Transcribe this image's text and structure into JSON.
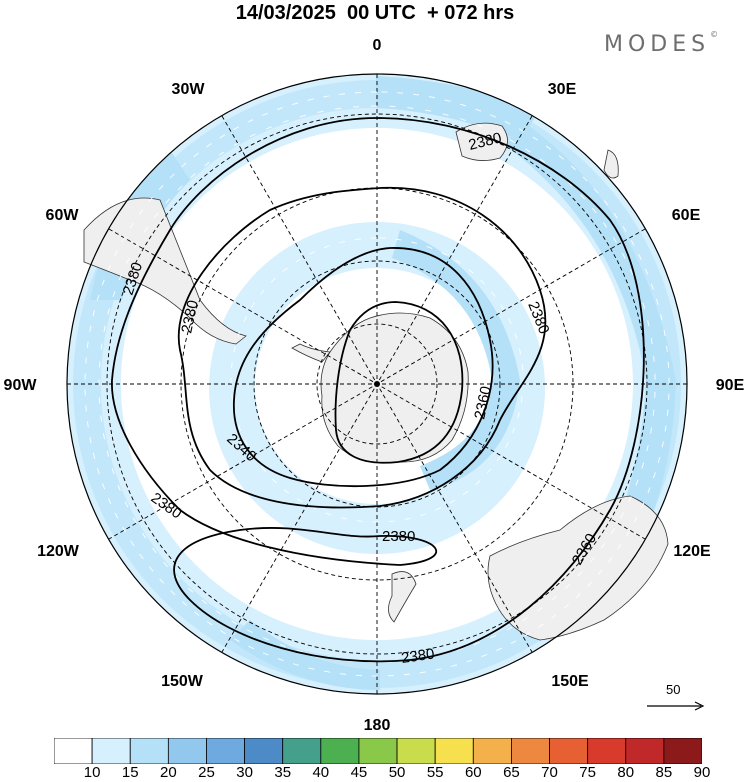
{
  "title": "14/03/2025  00 UTC  + 072 hrs",
  "brand": "MODES",
  "brand_mark": "©",
  "longitude_labels": {
    "lon_0": "0",
    "lon_30e": "30E",
    "lon_60e": "60E",
    "lon_90e": "90E",
    "lon_120e": "120E",
    "lon_150e": "150E",
    "lon_180": "180",
    "lon_150w": "150W",
    "lon_120w": "120W",
    "lon_90w": "90W",
    "lon_60w": "60W",
    "lon_30w": "30W"
  },
  "contour_labels": [
    "2380",
    "2380",
    "2380",
    "2380",
    "2380",
    "2380",
    "2380",
    "2360",
    "2360",
    "2340"
  ],
  "reference_vector": {
    "value": "50"
  },
  "colorbar": {
    "ticks": [
      "10",
      "15",
      "20",
      "25",
      "30",
      "35",
      "40",
      "45",
      "50",
      "55",
      "60",
      "65",
      "70",
      "75",
      "80",
      "85",
      "90"
    ],
    "colors": [
      "#ffffff",
      "#d6f0fd",
      "#b4e0f8",
      "#92c8ee",
      "#6eaae0",
      "#4d8bc8",
      "#44a08a",
      "#4cb050",
      "#8ac84a",
      "#c8dc4c",
      "#f6e04e",
      "#f4b04a",
      "#ee8840",
      "#e66034",
      "#d83a2c",
      "#c0282a",
      "#8c1a1a"
    ]
  },
  "colors": {
    "land": "#efefef",
    "wind_10_15": "#d6f0fd",
    "wind_15_20": "#b4e0f8",
    "contour": "#000000"
  }
}
